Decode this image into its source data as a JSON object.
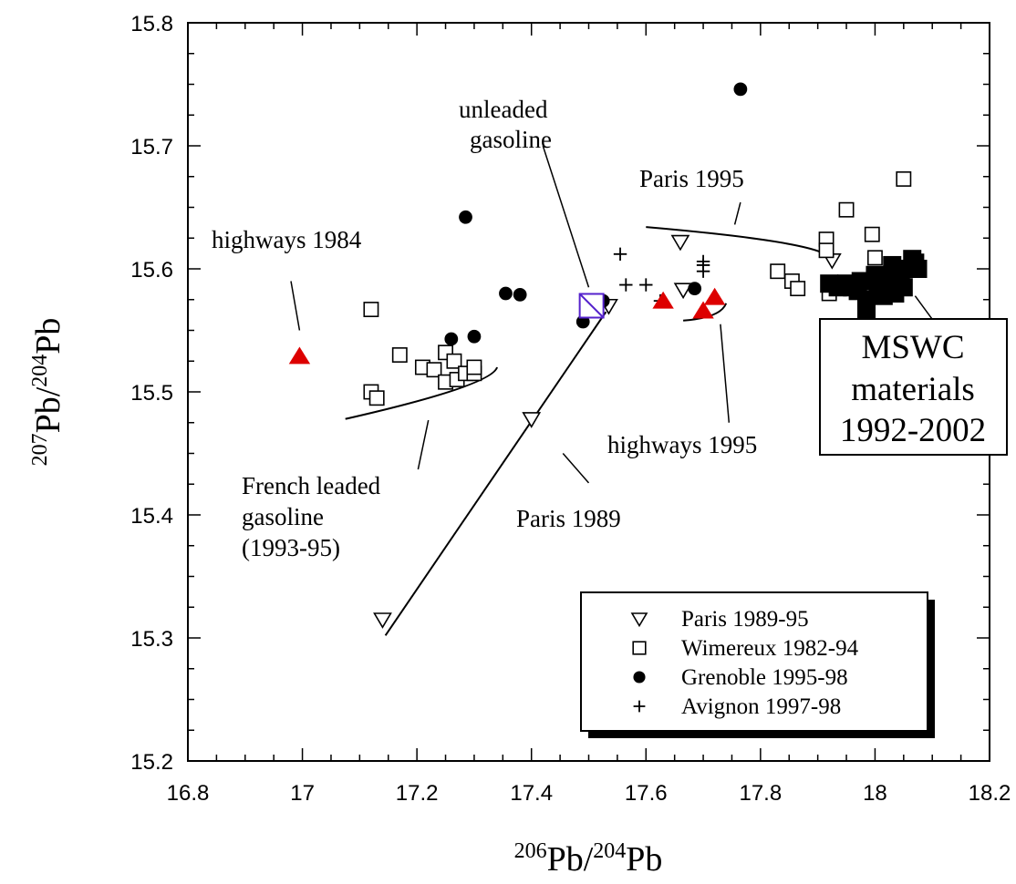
{
  "chart_data": {
    "type": "scatter",
    "title": "",
    "xlabel": {
      "sup1": "206",
      "base1": "Pb/",
      "sup2": "204",
      "base2": "Pb"
    },
    "ylabel": {
      "sup1": "207",
      "base1": "Pb/",
      "sup2": "204",
      "base2": "Pb"
    },
    "xlim": [
      16.8,
      18.2
    ],
    "ylim": [
      15.2,
      15.8
    ],
    "xticks": [
      "16.8",
      "17",
      "17.2",
      "17.4",
      "17.6",
      "17.8",
      "18",
      "18.2"
    ],
    "yticks": [
      "15.2",
      "15.3",
      "15.4",
      "15.5",
      "15.6",
      "15.7",
      "15.8"
    ],
    "legend_position": "bottom-right",
    "series": [
      {
        "name": "Paris 1989-95",
        "marker": "triangle-down-open",
        "color": "#000000",
        "points": [
          [
            17.14,
            15.315
          ],
          [
            17.4,
            15.478
          ],
          [
            17.535,
            15.57
          ],
          [
            17.66,
            15.622
          ],
          [
            17.665,
            15.583
          ],
          [
            17.925,
            15.607
          ]
        ]
      },
      {
        "name": "Wimereux 1982-94",
        "marker": "square-open",
        "color": "#000000",
        "points": [
          [
            17.12,
            15.567
          ],
          [
            17.12,
            15.5
          ],
          [
            17.13,
            15.495
          ],
          [
            17.17,
            15.53
          ],
          [
            17.21,
            15.52
          ],
          [
            17.23,
            15.518
          ],
          [
            17.25,
            15.532
          ],
          [
            17.25,
            15.508
          ],
          [
            17.265,
            15.525
          ],
          [
            17.27,
            15.51
          ],
          [
            17.285,
            15.515
          ],
          [
            17.3,
            15.515
          ],
          [
            17.3,
            15.52
          ],
          [
            17.83,
            15.598
          ],
          [
            17.855,
            15.59
          ],
          [
            17.865,
            15.584
          ],
          [
            17.915,
            15.624
          ],
          [
            17.915,
            15.615
          ],
          [
            17.92,
            15.58
          ],
          [
            17.95,
            15.648
          ],
          [
            17.995,
            15.628
          ],
          [
            18.0,
            15.609
          ],
          [
            18.05,
            15.673
          ]
        ]
      },
      {
        "name": "Grenoble 1995-98",
        "marker": "circle-filled",
        "color": "#000000",
        "points": [
          [
            17.285,
            15.642
          ],
          [
            17.355,
            15.58
          ],
          [
            17.38,
            15.579
          ],
          [
            17.26,
            15.543
          ],
          [
            17.3,
            15.545
          ],
          [
            17.49,
            15.557
          ],
          [
            17.525,
            15.574
          ],
          [
            17.685,
            15.584
          ],
          [
            17.765,
            15.746
          ]
        ]
      },
      {
        "name": "Avignon 1997-98",
        "marker": "plus",
        "color": "#000000",
        "points": [
          [
            17.555,
            15.612
          ],
          [
            17.565,
            15.587
          ],
          [
            17.6,
            15.587
          ],
          [
            17.625,
            15.574
          ],
          [
            17.7,
            15.606
          ],
          [
            17.7,
            15.598
          ],
          [
            17.7,
            15.603
          ]
        ]
      },
      {
        "name": "",
        "marker": "triangle-up-filled",
        "color": "#dd0000",
        "points": [
          [
            16.995,
            15.529
          ],
          [
            17.63,
            15.574
          ],
          [
            17.7,
            15.566
          ],
          [
            17.72,
            15.577
          ]
        ]
      },
      {
        "name": "",
        "marker": "square-crossed",
        "color": "#5522cc",
        "points": [
          [
            17.505,
            15.57
          ]
        ]
      },
      {
        "name": "",
        "marker": "square-filled",
        "color": "#000000",
        "points": [
          [
            17.92,
            15.588
          ],
          [
            17.935,
            15.585
          ],
          [
            17.95,
            15.588
          ],
          [
            17.96,
            15.585
          ],
          [
            17.97,
            15.582
          ],
          [
            17.975,
            15.59
          ],
          [
            17.985,
            15.575
          ],
          [
            17.985,
            15.567
          ],
          [
            18.0,
            15.595
          ],
          [
            18.005,
            15.585
          ],
          [
            18.015,
            15.578
          ],
          [
            18.02,
            15.59
          ],
          [
            18.03,
            15.603
          ],
          [
            18.035,
            15.58
          ],
          [
            18.045,
            15.595
          ],
          [
            18.05,
            15.585
          ],
          [
            18.06,
            15.6
          ],
          [
            18.065,
            15.608
          ],
          [
            18.07,
            15.605
          ],
          [
            18.075,
            15.6
          ]
        ]
      }
    ],
    "annotations": {
      "highways_1984": "highways 1984",
      "unleaded_1": "unleaded",
      "unleaded_2": "gasoline",
      "paris_1995": "Paris 1995",
      "highways_1995": "highways 1995",
      "french_1": "French leaded",
      "french_2": "gasoline",
      "french_3": "(1993-95)",
      "paris_1989": "Paris 1989",
      "mswc_1": "MSWC",
      "mswc_2": "materials",
      "mswc_3": "1992-2002"
    },
    "trend_lines": [
      {
        "name": "Paris 1989 trend",
        "points": [
          [
            17.145,
            15.302
          ],
          [
            17.53,
            15.565
          ]
        ]
      },
      {
        "name": "French leaded gasoline curve",
        "curve": "quadratic",
        "points": [
          [
            17.075,
            15.478
          ],
          [
            17.33,
            15.505
          ],
          [
            17.34,
            15.52
          ]
        ]
      },
      {
        "name": "highways 1995 curve",
        "curve": "quadratic",
        "points": [
          [
            17.665,
            15.558
          ],
          [
            17.73,
            15.56
          ],
          [
            17.74,
            15.572
          ]
        ]
      },
      {
        "name": "Paris 1995 curve",
        "curve": "quadratic",
        "points": [
          [
            17.6,
            15.634
          ],
          [
            17.95,
            15.62
          ],
          [
            17.92,
            15.605
          ]
        ]
      }
    ],
    "pointer_lines": [
      {
        "name": "highways 1984 pointer",
        "points": [
          [
            16.98,
            15.59
          ],
          [
            16.995,
            15.55
          ]
        ]
      },
      {
        "name": "unleaded gasoline pointer",
        "points": [
          [
            17.42,
            15.7
          ],
          [
            17.5,
            15.585
          ]
        ]
      },
      {
        "name": "paris 1989 pointer",
        "points": [
          [
            17.455,
            15.45
          ],
          [
            17.5,
            15.426
          ]
        ]
      },
      {
        "name": "french leaded pointer",
        "points": [
          [
            17.22,
            15.477
          ],
          [
            17.202,
            15.437
          ]
        ]
      },
      {
        "name": "highways 1995 pointer",
        "points": [
          [
            17.73,
            15.555
          ],
          [
            17.745,
            15.475
          ]
        ]
      },
      {
        "name": "paris 1995 pointer",
        "points": [
          [
            17.765,
            15.654
          ],
          [
            17.755,
            15.636
          ]
        ]
      },
      {
        "name": "mswc pointer",
        "points": [
          [
            18.07,
            15.578
          ],
          [
            18.1,
            15.559
          ]
        ]
      }
    ]
  }
}
